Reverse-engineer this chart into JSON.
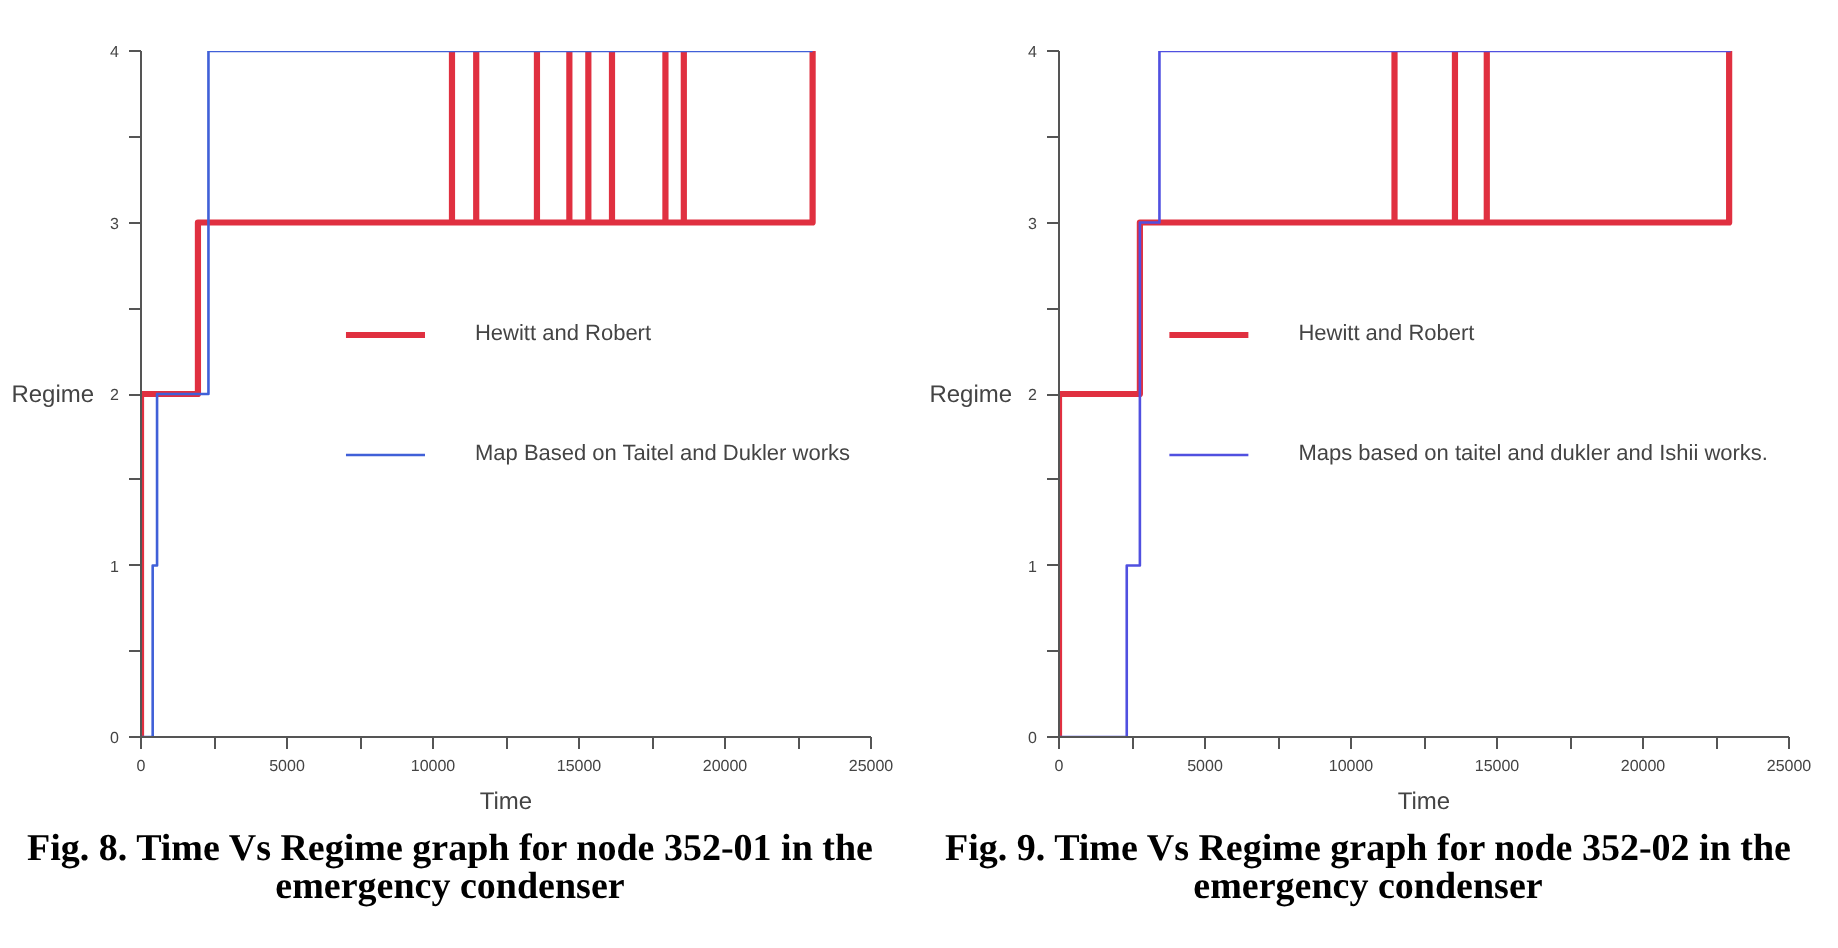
{
  "chart_data": [
    {
      "type": "step",
      "xlabel": "Time",
      "ylabel": "Regime",
      "xlim": [
        0,
        25000
      ],
      "ylim": [
        0,
        4
      ],
      "xticks": [
        0,
        {
          "value": 2500,
          "label": null
        },
        5000,
        {
          "value": 7500,
          "label": null
        },
        10000,
        {
          "value": 12500,
          "label": null
        },
        15000,
        {
          "value": 17500,
          "label": null
        },
        20000,
        {
          "value": 22500,
          "label": null
        },
        25000
      ],
      "yticks": [
        0,
        {
          "value": 0.5,
          "label": null
        },
        1,
        {
          "value": 1.5,
          "label": null
        },
        2,
        {
          "value": 2.5,
          "label": null
        },
        3,
        {
          "value": 3.5,
          "label": null
        },
        4
      ],
      "legend": "right",
      "series": [
        {
          "name": "Hewitt and Robert",
          "color": "#e03040",
          "x": [
            0,
            0,
            1950,
            10650,
            10650,
            11480,
            11480,
            13560,
            13560,
            14670,
            14670,
            15320,
            15320,
            16130,
            16130,
            17960,
            17960,
            18590,
            18590,
            23000
          ],
          "values": [
            0,
            2,
            3,
            4,
            3,
            4,
            3,
            4,
            3,
            4,
            3,
            4,
            3,
            4,
            3,
            4,
            3,
            4,
            3,
            4
          ]
        },
        {
          "name": "Map Based on Taitel and Dukler works",
          "color": "#4060d8",
          "x": [
            0,
            400,
            550,
            2310,
            23000
          ],
          "values": [
            0,
            1,
            2,
            4,
            4
          ]
        }
      ],
      "annotations": [
        "Fig. 8. Time Vs Regime graph for node 352-01 in the emergency condenser"
      ]
    },
    {
      "type": "step",
      "xlabel": "Time",
      "ylabel": "Regime",
      "xlim": [
        0,
        25000
      ],
      "ylim": [
        0,
        4
      ],
      "xticks": [
        0,
        {
          "value": 2500,
          "label": null
        },
        5000,
        {
          "value": 7500,
          "label": null
        },
        10000,
        {
          "value": 12500,
          "label": null
        },
        15000,
        {
          "value": 17500,
          "label": null
        },
        20000,
        {
          "value": 22500,
          "label": null
        },
        25000
      ],
      "yticks": [
        0,
        {
          "value": 0.5,
          "label": null
        },
        1,
        {
          "value": 1.5,
          "label": null
        },
        2,
        {
          "value": 2.5,
          "label": null
        },
        3,
        {
          "value": 3.5,
          "label": null
        },
        4
      ],
      "legend": "right",
      "series": [
        {
          "name": "Hewitt and Robert",
          "color": "#e03040",
          "x": [
            0,
            0,
            2770,
            11490,
            11490,
            13560,
            13560,
            14650,
            14650,
            22950
          ],
          "values": [
            0,
            2,
            3,
            4,
            3,
            4,
            3,
            4,
            3,
            4
          ]
        },
        {
          "name": "Maps based on taitel and dukler and Ishii works.",
          "color": "#5050e0",
          "x": [
            0,
            2320,
            2770,
            3440,
            23000
          ],
          "values": [
            0,
            1,
            3,
            4,
            4
          ]
        }
      ],
      "annotations": [
        "Fig. 9. Time Vs Regime graph for node 352-02 in the emergency condenser"
      ]
    }
  ]
}
